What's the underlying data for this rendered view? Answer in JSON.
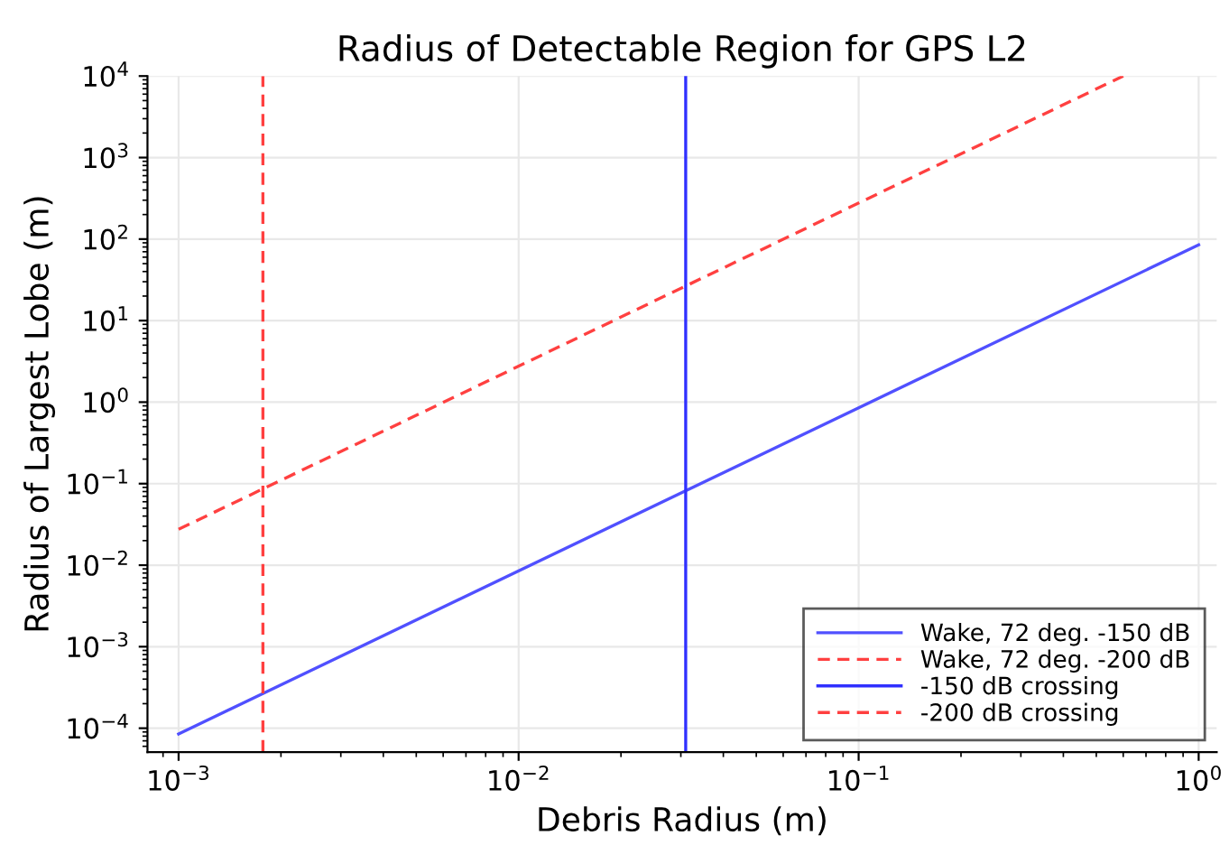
{
  "chart_data": {
    "type": "line",
    "title": "Radius of Detectable Region for GPS L2",
    "xlabel": "Debris Radius (m)",
    "ylabel": "Radius of Largest Lobe (m)",
    "log": "xy",
    "grid": true,
    "legend": "bottom right",
    "xlim": [
      0.00081,
      1.13
    ],
    "ylim": [
      5.1e-05,
      10000
    ],
    "xticks": [
      {
        "value": 0.001,
        "label": "10$^{−3}$"
      },
      {
        "value": 0.01,
        "label": "10$^{−2}$"
      },
      {
        "value": 0.1,
        "label": "10$^{−1}$"
      },
      {
        "value": 1,
        "label": "10$^{0}$"
      }
    ],
    "yticks": [
      {
        "value": 0.0001,
        "label": "10$^{−4}$"
      },
      {
        "value": 0.001,
        "label": "10$^{−3}$"
      },
      {
        "value": 0.01,
        "label": "10$^{−2}$"
      },
      {
        "value": 0.1,
        "label": "10$^{−1}$"
      },
      {
        "value": 1,
        "label": "10$^{0}$"
      },
      {
        "value": 10,
        "label": "10$^{1}$"
      },
      {
        "value": 100,
        "label": "10$^{2}$"
      },
      {
        "value": 1000,
        "label": "10$^{3}$"
      },
      {
        "value": 10000,
        "label": "10$^{4}$"
      }
    ],
    "series": [
      {
        "name": "Wake, 72 deg. -150 dB",
        "color": "#5050ff",
        "line_style": "solid",
        "x": [
          0.001,
          1
        ],
        "values": [
          8.5e-05,
          85
        ]
      },
      {
        "name": "Wake, 72 deg. -200 dB",
        "color": "#ff4040",
        "line_style": "dashed",
        "x": [
          0.001,
          0.6
        ],
        "values": [
          0.0275,
          10000
        ]
      },
      {
        "name": "-150 dB crossing",
        "color": "#3030ff",
        "line_style": "solid",
        "x": [
          0.031,
          0.031
        ],
        "values": [
          5.1e-05,
          10000
        ]
      },
      {
        "name": "-200 dB crossing",
        "color": "#ff4040",
        "line_style": "dashed",
        "x": [
          0.00177,
          0.00177
        ],
        "values": [
          5.1e-05,
          10000
        ]
      }
    ]
  }
}
